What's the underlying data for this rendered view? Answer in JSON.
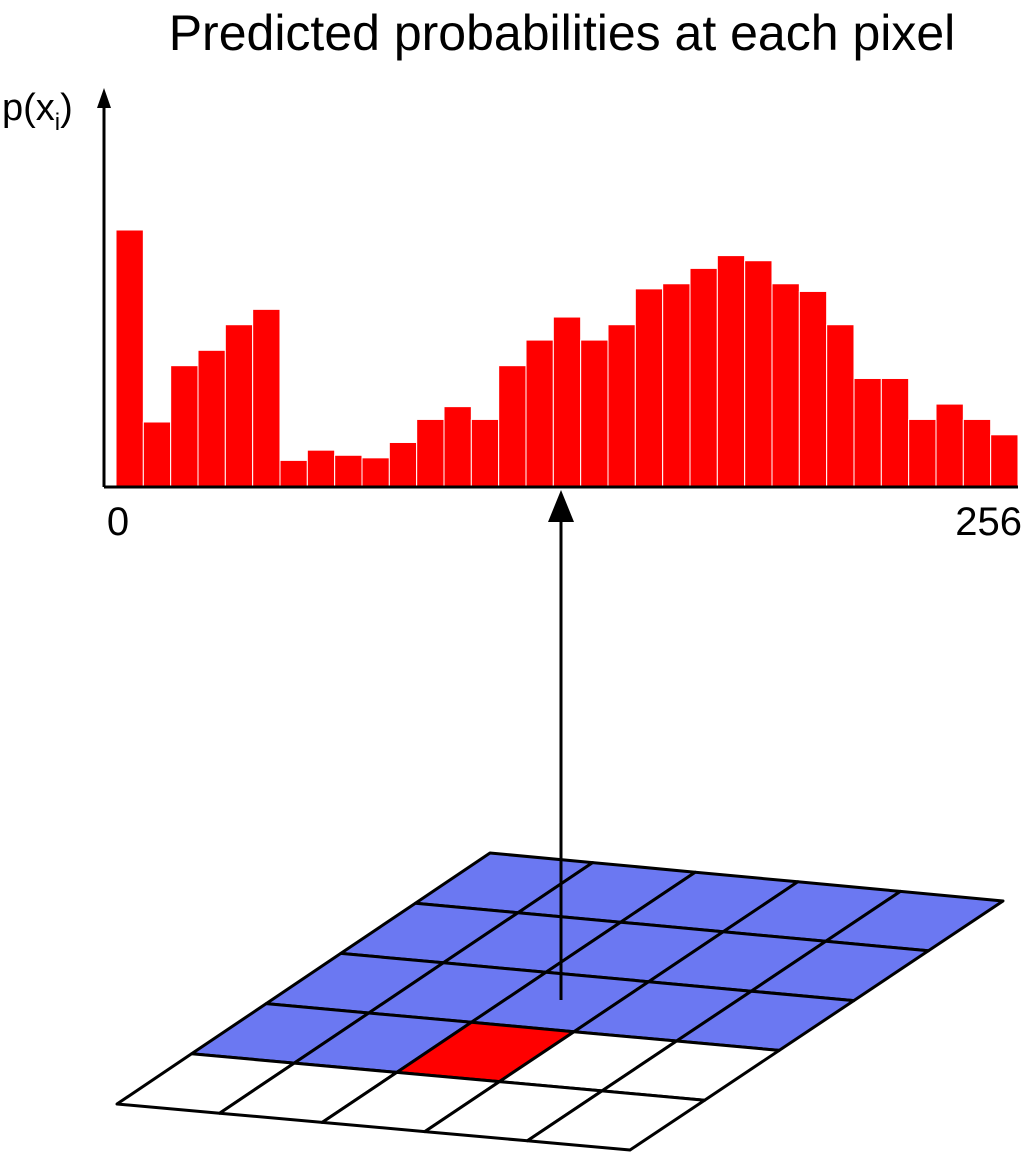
{
  "title": "Predicted probabilities at each pixel",
  "histogram": {
    "y_axis_label": "p(x",
    "y_axis_subscript": "i",
    "y_axis_close": ")",
    "x_min_label": "0",
    "x_max_label": "256",
    "bar_color": "#ff0000",
    "relative_heights": [
      1.0,
      0.25,
      0.47,
      0.53,
      0.63,
      0.69,
      0.1,
      0.14,
      0.12,
      0.11,
      0.17,
      0.26,
      0.31,
      0.26,
      0.47,
      0.57,
      0.66,
      0.57,
      0.63,
      0.77,
      0.79,
      0.85,
      0.9,
      0.88,
      0.79,
      0.76,
      0.63,
      0.42,
      0.42,
      0.26,
      0.32,
      0.26,
      0.2
    ]
  },
  "pixel_grid": {
    "rows": 5,
    "cols": 5,
    "context_color": "#6b78f2",
    "current_color": "#ff0000",
    "empty_color": "#ffffff",
    "cell_states": [
      [
        "context",
        "context",
        "context",
        "context",
        "context"
      ],
      [
        "context",
        "context",
        "context",
        "context",
        "context"
      ],
      [
        "context",
        "context",
        "context",
        "context",
        "context"
      ],
      [
        "context",
        "context",
        "current",
        "empty",
        "empty"
      ],
      [
        "empty",
        "empty",
        "empty",
        "empty",
        "empty"
      ]
    ]
  }
}
